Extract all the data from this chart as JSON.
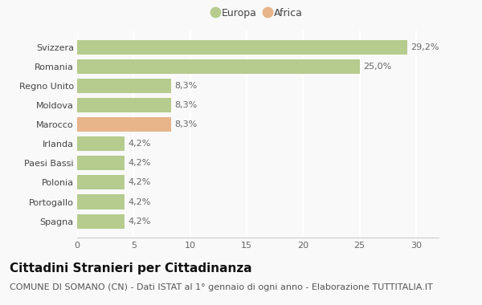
{
  "categories": [
    "Spagna",
    "Portogallo",
    "Polonia",
    "Paesi Bassi",
    "Irlanda",
    "Marocco",
    "Moldova",
    "Regno Unito",
    "Romania",
    "Svizzera"
  ],
  "values": [
    4.2,
    4.2,
    4.2,
    4.2,
    4.2,
    8.3,
    8.3,
    8.3,
    25.0,
    29.2
  ],
  "colors": [
    "#b5cc8e",
    "#b5cc8e",
    "#b5cc8e",
    "#b5cc8e",
    "#b5cc8e",
    "#e8b48a",
    "#b5cc8e",
    "#b5cc8e",
    "#b5cc8e",
    "#b5cc8e"
  ],
  "labels": [
    "4,2%",
    "4,2%",
    "4,2%",
    "4,2%",
    "4,2%",
    "8,3%",
    "8,3%",
    "8,3%",
    "25,0%",
    "29,2%"
  ],
  "legend_europa_color": "#b5cc8e",
  "legend_africa_color": "#e8b48a",
  "title": "Cittadini Stranieri per Cittadinanza",
  "subtitle": "COMUNE DI SOMANO (CN) - Dati ISTAT al 1° gennaio di ogni anno - Elaborazione TUTTITALIA.IT",
  "xlim": [
    0,
    32
  ],
  "xticks": [
    0,
    5,
    10,
    15,
    20,
    25,
    30
  ],
  "background_color": "#f9f9f9",
  "bar_height": 0.75,
  "title_fontsize": 11,
  "subtitle_fontsize": 8,
  "label_fontsize": 8,
  "tick_fontsize": 8,
  "ytick_fontsize": 8,
  "legend_fontsize": 9
}
